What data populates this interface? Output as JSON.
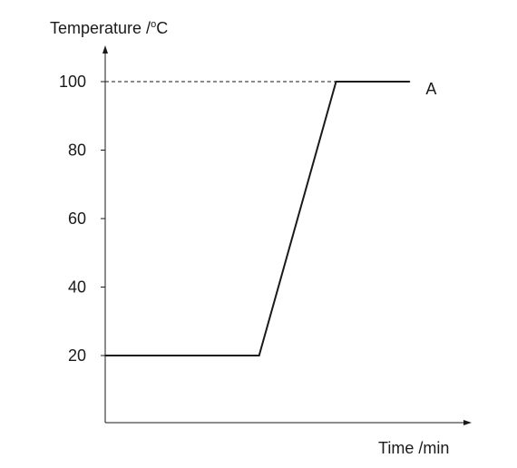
{
  "chart_data": {
    "type": "line",
    "ylabel": "Temperature /",
    "ylabel_sup": "o",
    "ylabel_unit": "C",
    "xlabel": "Time /min",
    "yticks": [
      20,
      40,
      60,
      80,
      100
    ],
    "ylim": [
      0,
      100
    ],
    "xlim": [
      0,
      10
    ],
    "grid": false,
    "reference_line": {
      "y": 100,
      "style": "dashed"
    },
    "series": [
      {
        "x": [
          0,
          4.2,
          6.3,
          8.3
        ],
        "y": [
          20,
          20,
          100,
          100
        ]
      }
    ],
    "annotations": [
      {
        "text": "A",
        "x": 8.3,
        "y": 100
      }
    ],
    "colors": {
      "line": "#1a1a1a",
      "axis": "#1a1a1a"
    }
  }
}
